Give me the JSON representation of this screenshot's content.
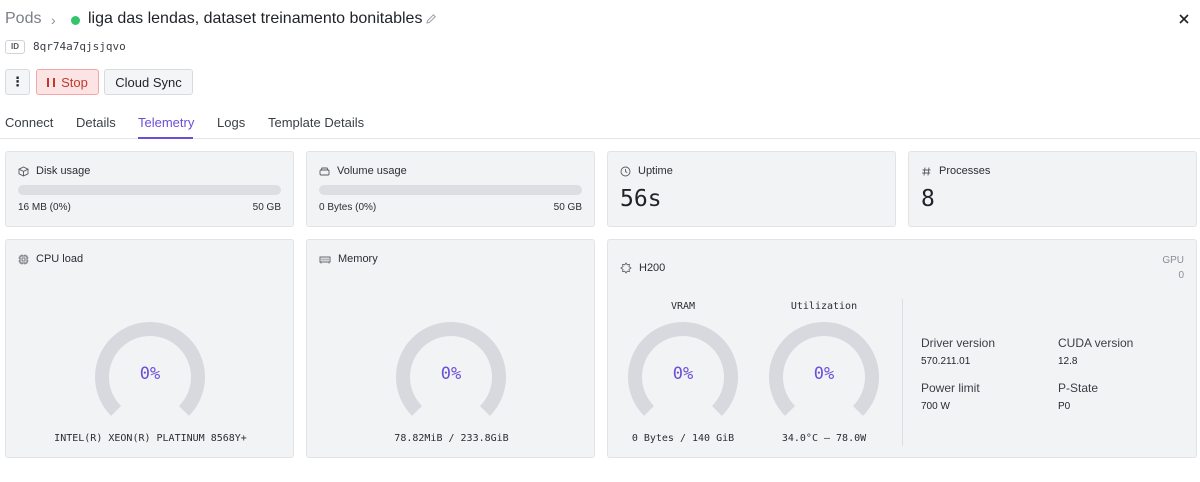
{
  "header": {
    "breadcrumb_root": "Pods",
    "title": "liga das lendas, dataset treinamento bonitables",
    "status_color": "#33c56b",
    "id_label": "ID",
    "id_value": "8qr74a7qjsjqvo"
  },
  "toolbar": {
    "more_label": "⋮",
    "stop_label": "Stop",
    "sync_label": "Cloud Sync"
  },
  "tabs": [
    {
      "label": "Connect"
    },
    {
      "label": "Details"
    },
    {
      "label": "Telemetry",
      "active": true
    },
    {
      "label": "Logs"
    },
    {
      "label": "Template Details"
    }
  ],
  "accent_color": "#6b4fd6",
  "disk": {
    "title": "Disk usage",
    "used": "16 MB (0%)",
    "total": "50 GB",
    "fraction": 0
  },
  "volume": {
    "title": "Volume usage",
    "used": "0 Bytes (0%)",
    "total": "50 GB",
    "fraction": 0
  },
  "uptime": {
    "title": "Uptime",
    "value": "56s"
  },
  "processes": {
    "title": "Processes",
    "value": "8"
  },
  "cpu": {
    "title": "CPU load",
    "percent_label": "0%",
    "percent": 0,
    "caption": "INTEL(R) XEON(R) PLATINUM 8568Y+"
  },
  "memory": {
    "title": "Memory",
    "percent_label": "0%",
    "percent": 0,
    "caption": "78.82MiB / 233.8GiB"
  },
  "gpu": {
    "title": "H200",
    "gpu_label": "GPU",
    "gpu_index": "0",
    "vram": {
      "head": "VRAM",
      "percent_label": "0%",
      "percent": 0,
      "caption": "0 Bytes / 140 GiB"
    },
    "util": {
      "head": "Utilization",
      "percent_label": "0%",
      "percent": 0,
      "caption": "34.0°C – 78.0W"
    },
    "driver_key": "Driver version",
    "driver_val": "570.211.01",
    "cuda_key": "CUDA version",
    "cuda_val": "12.8",
    "power_key": "Power limit",
    "power_val": "700 W",
    "pstate_key": "P-State",
    "pstate_val": "P0"
  }
}
